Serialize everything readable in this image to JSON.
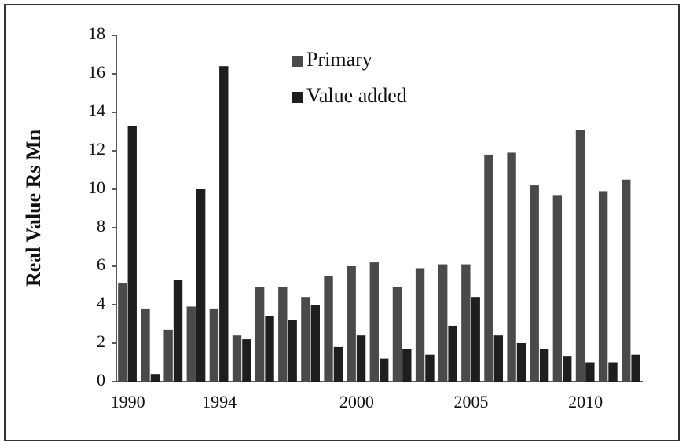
{
  "chart_data": {
    "type": "bar",
    "y_label": "Real Value Rs Mn",
    "categories": [
      "1990",
      null,
      null,
      null,
      "1994",
      null,
      null,
      null,
      null,
      null,
      "2000",
      null,
      null,
      null,
      null,
      "2005",
      null,
      null,
      null,
      null,
      "2010",
      null,
      null
    ],
    "series": [
      {
        "name": "Primary",
        "color": "#4a4a4a",
        "values": [
          5.1,
          3.8,
          2.7,
          3.9,
          3.8,
          2.4,
          4.9,
          4.9,
          4.4,
          5.5,
          6.0,
          6.2,
          4.9,
          5.9,
          6.1,
          6.1,
          11.8,
          11.9,
          10.2,
          9.7,
          13.1,
          9.9,
          10.5
        ]
      },
      {
        "name": "Value added",
        "color": "#1e1e1e",
        "values": [
          13.3,
          0.4,
          5.3,
          10.0,
          16.4,
          2.2,
          3.4,
          3.2,
          4.0,
          1.8,
          2.4,
          1.2,
          1.7,
          1.4,
          2.9,
          4.4,
          2.4,
          2.0,
          1.7,
          1.3,
          1.0,
          1.0,
          1.4
        ]
      }
    ],
    "ylim": [
      0,
      18
    ],
    "yticks": [
      0,
      2,
      4,
      6,
      8,
      10,
      12,
      14,
      16,
      18
    ]
  }
}
